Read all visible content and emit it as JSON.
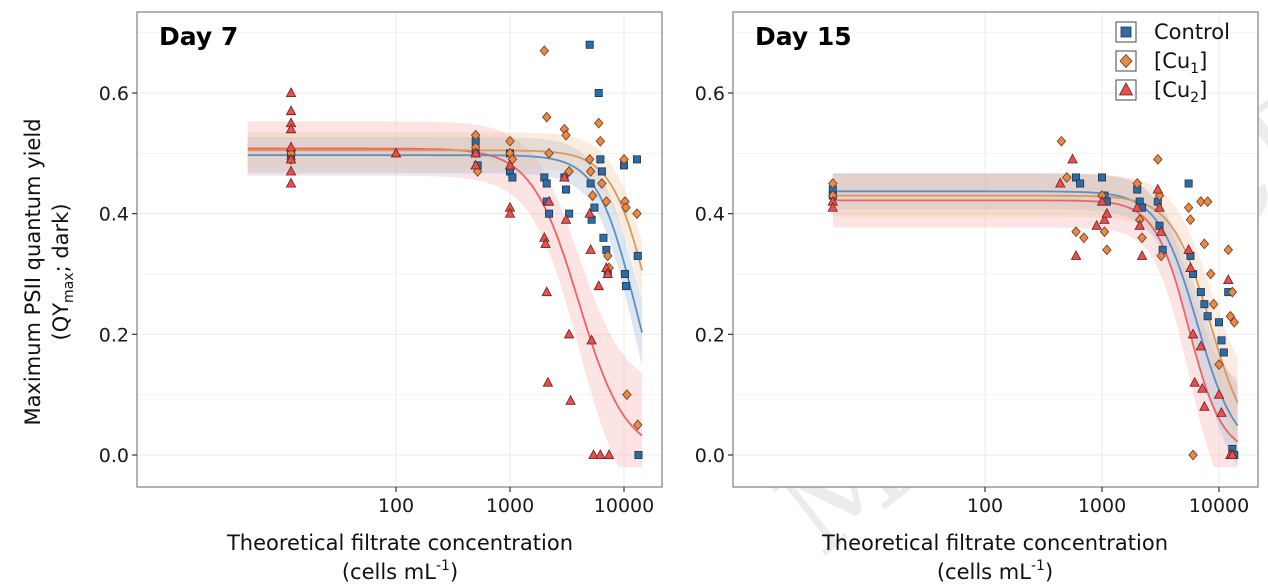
{
  "chart_data": [
    {
      "type": "scatter",
      "title": "Day 7",
      "xlabel": "Theoretical filtrate concentration",
      "xlabel_units": [
        "(cells mL",
        "-1",
        ")"
      ],
      "ylabel": [
        "Maximum PSII quantum yield",
        "(QY",
        "max",
        "; dark)"
      ],
      "x_scale": "log",
      "x_ticks": [
        100,
        1000,
        10000
      ],
      "x_tick_labels": [
        "100",
        "1000",
        "10000"
      ],
      "y_ticks": [
        0.0,
        0.2,
        0.4,
        0.6
      ],
      "y_tick_labels": [
        "0.0",
        "0.2",
        "0.4",
        "0.6"
      ],
      "ylim": [
        -0.03,
        0.73
      ],
      "xlim": [
        5,
        15000
      ],
      "grid": true,
      "fits": [
        {
          "series": "Control",
          "top": 0.497,
          "ec50": 12500,
          "hill": 2.6,
          "ci": 0.03
        },
        {
          "series": "[Cu1]",
          "top": 0.505,
          "ec50": 17000,
          "hill": 2.6,
          "ci": 0.03
        },
        {
          "series": "[Cu2]",
          "top": 0.508,
          "ec50": 4000,
          "hill": 2.1,
          "ci": 0.045
        }
      ],
      "series": [
        {
          "name": "Control",
          "points": [
            [
              12,
              0.5
            ],
            [
              12,
              0.49
            ],
            [
              500,
              0.52
            ],
            [
              500,
              0.5
            ],
            [
              520,
              0.48
            ],
            [
              1000,
              0.5
            ],
            [
              1000,
              0.47
            ],
            [
              1050,
              0.46
            ],
            [
              2000,
              0.46
            ],
            [
              2100,
              0.45
            ],
            [
              2100,
              0.42
            ],
            [
              2200,
              0.4
            ],
            [
              3000,
              0.46
            ],
            [
              3100,
              0.44
            ],
            [
              3300,
              0.4
            ],
            [
              5000,
              0.68
            ],
            [
              5100,
              0.45
            ],
            [
              5200,
              0.39
            ],
            [
              5500,
              0.41
            ],
            [
              6000,
              0.6
            ],
            [
              6200,
              0.49
            ],
            [
              6400,
              0.47
            ],
            [
              6600,
              0.36
            ],
            [
              7000,
              0.34
            ],
            [
              7200,
              0.3
            ],
            [
              10000,
              0.48
            ],
            [
              10200,
              0.3
            ],
            [
              10400,
              0.28
            ],
            [
              13000,
              0.49
            ],
            [
              13200,
              0.33
            ],
            [
              13400,
              0.0
            ]
          ]
        },
        {
          "name": "[Cu1]",
          "points": [
            [
              12,
              0.5
            ],
            [
              12,
              0.49
            ],
            [
              500,
              0.53
            ],
            [
              500,
              0.51
            ],
            [
              520,
              0.47
            ],
            [
              1000,
              0.52
            ],
            [
              1000,
              0.5
            ],
            [
              1050,
              0.49
            ],
            [
              2000,
              0.67
            ],
            [
              2100,
              0.56
            ],
            [
              2200,
              0.5
            ],
            [
              3000,
              0.54
            ],
            [
              3100,
              0.53
            ],
            [
              3300,
              0.47
            ],
            [
              5000,
              0.49
            ],
            [
              5100,
              0.47
            ],
            [
              5300,
              0.43
            ],
            [
              6000,
              0.55
            ],
            [
              6200,
              0.52
            ],
            [
              6400,
              0.45
            ],
            [
              7000,
              0.42
            ],
            [
              7200,
              0.33
            ],
            [
              7400,
              0.31
            ],
            [
              10000,
              0.49
            ],
            [
              10200,
              0.42
            ],
            [
              10400,
              0.41
            ],
            [
              10600,
              0.1
            ],
            [
              13000,
              0.4
            ],
            [
              13200,
              0.05
            ]
          ]
        },
        {
          "name": "[Cu2]",
          "points": [
            [
              12,
              0.6
            ],
            [
              12,
              0.57
            ],
            [
              12,
              0.55
            ],
            [
              12,
              0.54
            ],
            [
              12,
              0.51
            ],
            [
              12,
              0.49
            ],
            [
              12,
              0.47
            ],
            [
              12,
              0.45
            ],
            [
              100,
              0.5
            ],
            [
              500,
              0.5
            ],
            [
              500,
              0.48
            ],
            [
              1000,
              0.48
            ],
            [
              1000,
              0.41
            ],
            [
              1000,
              0.4
            ],
            [
              2000,
              0.36
            ],
            [
              2050,
              0.35
            ],
            [
              2100,
              0.27
            ],
            [
              2150,
              0.12
            ],
            [
              2200,
              0.42
            ],
            [
              3000,
              0.46
            ],
            [
              3100,
              0.39
            ],
            [
              3300,
              0.2
            ],
            [
              3400,
              0.09
            ],
            [
              5000,
              0.4
            ],
            [
              5100,
              0.34
            ],
            [
              5200,
              0.19
            ],
            [
              5400,
              0.0
            ],
            [
              6000,
              0.28
            ],
            [
              6200,
              0.0
            ],
            [
              7000,
              0.31
            ],
            [
              7200,
              0.3
            ],
            [
              7400,
              0.0
            ]
          ]
        }
      ]
    },
    {
      "type": "scatter",
      "title": "Day 15",
      "xlabel": "Theoretical filtrate concentration",
      "xlabel_units": [
        "(cells mL",
        "-1",
        ")"
      ],
      "x_scale": "log",
      "x_ticks": [
        100,
        1000,
        10000
      ],
      "x_tick_labels": [
        "100",
        "1000",
        "10000"
      ],
      "y_ticks": [
        0.0,
        0.2,
        0.4,
        0.6
      ],
      "y_tick_labels": [
        "0.0",
        "0.2",
        "0.4",
        "0.6"
      ],
      "ylim": [
        -0.03,
        0.73
      ],
      "xlim": [
        5,
        15000
      ],
      "grid": true,
      "fits": [
        {
          "series": "Control",
          "top": 0.437,
          "ec50": 6500,
          "hill": 2.6,
          "ci": 0.03
        },
        {
          "series": "[Cu1]",
          "top": 0.43,
          "ec50": 8500,
          "hill": 2.6,
          "ci": 0.035
        },
        {
          "series": "[Cu2]",
          "top": 0.422,
          "ec50": 5500,
          "hill": 3.0,
          "ci": 0.045
        }
      ],
      "series": [
        {
          "name": "Control",
          "points": [
            [
              5,
              0.44
            ],
            [
              5,
              0.43
            ],
            [
              600,
              0.46
            ],
            [
              650,
              0.45
            ],
            [
              1000,
              0.46
            ],
            [
              1050,
              0.43
            ],
            [
              1100,
              0.42
            ],
            [
              2000,
              0.44
            ],
            [
              2100,
              0.42
            ],
            [
              2200,
              0.41
            ],
            [
              3000,
              0.42
            ],
            [
              3100,
              0.38
            ],
            [
              3300,
              0.34
            ],
            [
              5500,
              0.45
            ],
            [
              5700,
              0.33
            ],
            [
              6000,
              0.3
            ],
            [
              7000,
              0.27
            ],
            [
              7500,
              0.25
            ],
            [
              8000,
              0.23
            ],
            [
              10000,
              0.22
            ],
            [
              10500,
              0.19
            ],
            [
              11000,
              0.17
            ],
            [
              12000,
              0.27
            ],
            [
              13000,
              0.01
            ],
            [
              13500,
              0.0
            ]
          ]
        },
        {
          "name": "[Cu1]",
          "points": [
            [
              5,
              0.45
            ],
            [
              5,
              0.43
            ],
            [
              450,
              0.52
            ],
            [
              500,
              0.46
            ],
            [
              600,
              0.37
            ],
            [
              700,
              0.36
            ],
            [
              1000,
              0.43
            ],
            [
              1050,
              0.37
            ],
            [
              1100,
              0.34
            ],
            [
              2000,
              0.45
            ],
            [
              2100,
              0.39
            ],
            [
              2200,
              0.36
            ],
            [
              3000,
              0.49
            ],
            [
              3100,
              0.43
            ],
            [
              3200,
              0.33
            ],
            [
              5500,
              0.41
            ],
            [
              5700,
              0.39
            ],
            [
              6000,
              0.0
            ],
            [
              7000,
              0.42
            ],
            [
              7500,
              0.35
            ],
            [
              8000,
              0.42
            ],
            [
              8500,
              0.3
            ],
            [
              9000,
              0.25
            ],
            [
              10000,
              0.15
            ],
            [
              12000,
              0.34
            ],
            [
              12500,
              0.23
            ],
            [
              13000,
              0.27
            ],
            [
              13500,
              0.22
            ]
          ]
        },
        {
          "name": "[Cu2]",
          "points": [
            [
              5,
              0.42
            ],
            [
              5,
              0.41
            ],
            [
              440,
              0.45
            ],
            [
              560,
              0.49
            ],
            [
              600,
              0.33
            ],
            [
              900,
              0.38
            ],
            [
              1000,
              0.42
            ],
            [
              1050,
              0.39
            ],
            [
              1100,
              0.4
            ],
            [
              2000,
              0.41
            ],
            [
              2100,
              0.38
            ],
            [
              2200,
              0.33
            ],
            [
              3000,
              0.44
            ],
            [
              3100,
              0.41
            ],
            [
              3200,
              0.37
            ],
            [
              5500,
              0.34
            ],
            [
              5700,
              0.31
            ],
            [
              6000,
              0.2
            ],
            [
              6200,
              0.12
            ],
            [
              7000,
              0.18
            ],
            [
              7200,
              0.11
            ],
            [
              7500,
              0.08
            ],
            [
              10000,
              0.1
            ],
            [
              10500,
              0.07
            ],
            [
              12000,
              0.29
            ],
            [
              12500,
              0.0
            ],
            [
              13000,
              0.0
            ]
          ]
        }
      ]
    }
  ],
  "legend": {
    "placement": "top-right",
    "entries": [
      {
        "series": "Control",
        "label": "Control",
        "sub": "",
        "tail": "",
        "marker": "square",
        "color": "#2e6da4"
      },
      {
        "series": "[Cu1]",
        "label": "[Cu",
        "sub": "1",
        "tail": "]",
        "marker": "diamond",
        "color": "#e8894a"
      },
      {
        "series": "[Cu2]",
        "label": "[Cu",
        "sub": "2",
        "tail": "]",
        "marker": "triangle",
        "color": "#e8504e"
      }
    ]
  },
  "colors": {
    "Control": {
      "fill": "#2e6da4",
      "line": "#5b8fc6",
      "band": "#9dbbdb"
    },
    "[Cu1]": {
      "fill": "#e8894a",
      "line": "#d9995e",
      "band": "#f2c9a3"
    },
    "[Cu2]": {
      "fill": "#e8504e",
      "line": "#f06262",
      "band": "#f7b3b3"
    }
  },
  "watermark": "MANUSCRIPT"
}
